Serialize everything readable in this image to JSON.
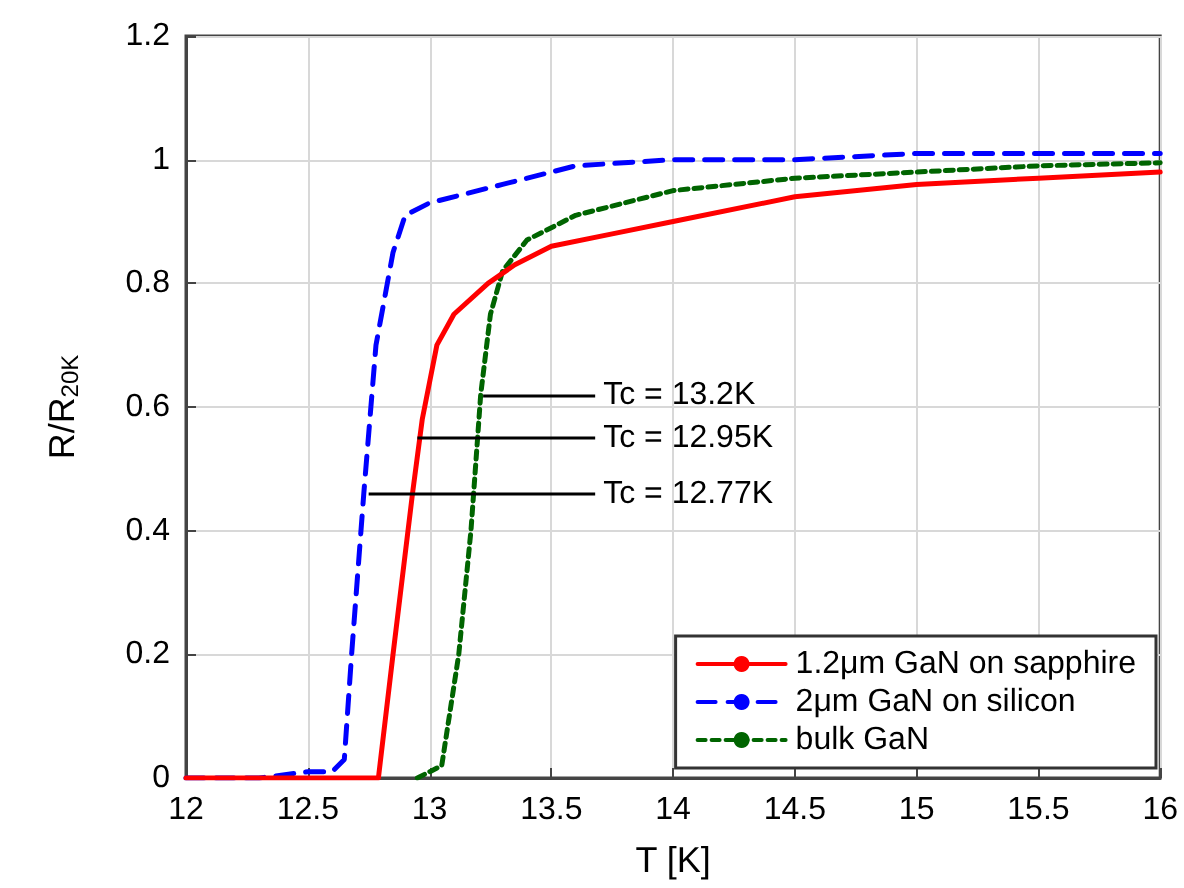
{
  "chart_data": {
    "type": "line",
    "xlabel": "T [K]",
    "ylabel": "R/R$_{20K}$",
    "xlim": [
      12,
      16
    ],
    "xticks": [
      12,
      12.5,
      13,
      13.5,
      14,
      14.5,
      15,
      15.5,
      16
    ],
    "ylim": [
      0,
      1.2
    ],
    "yticks": [
      0,
      0.2,
      0.4,
      0.6,
      0.8,
      1,
      1.2
    ],
    "grid": true,
    "legend": "bottom right",
    "marker": "none",
    "series": [
      {
        "name": "1.2μm GaN on sapphire",
        "color": "#ff0000",
        "line_style": "solid",
        "x": [
          12,
          12.79,
          12.85,
          12.93,
          12.97,
          13.03,
          13.1,
          13.24,
          13.35,
          13.5,
          13.75,
          14,
          14.5,
          15,
          15.5,
          16
        ],
        "values": [
          0,
          0,
          0.2,
          0.46,
          0.58,
          0.7,
          0.75,
          0.8,
          0.83,
          0.86,
          0.88,
          0.9,
          0.94,
          0.96,
          0.97,
          0.98
        ]
      },
      {
        "name": "2μm GaN on silicon",
        "color": "#0000ff",
        "line_style": "dashed",
        "x": [
          12,
          12.3,
          12.5,
          12.6,
          12.65,
          12.68,
          12.73,
          12.78,
          12.85,
          12.9,
          13,
          13.3,
          13.6,
          14,
          14.5,
          15,
          15.5,
          16
        ],
        "values": [
          0,
          0,
          0.01,
          0.01,
          0.03,
          0.2,
          0.46,
          0.7,
          0.85,
          0.91,
          0.93,
          0.96,
          0.99,
          1,
          1,
          1.01,
          1.01,
          1.01
        ]
      },
      {
        "name": "bulk GaN",
        "color": "#006400",
        "line_style": "dotted",
        "x": [
          12.95,
          13.05,
          13.12,
          13.17,
          13.21,
          13.25,
          13.3,
          13.4,
          13.6,
          14,
          14.5,
          15,
          15.5,
          16
        ],
        "values": [
          0,
          0.02,
          0.2,
          0.4,
          0.62,
          0.75,
          0.82,
          0.87,
          0.91,
          0.95,
          0.97,
          0.98,
          0.99,
          0.995
        ]
      }
    ],
    "annotations": [
      {
        "text": "Tc = 13.2K",
        "x": 13.22,
        "y": 0.62
      },
      {
        "text": "Tc = 12.95K",
        "x": 12.95,
        "y": 0.55
      },
      {
        "text": "Tc = 12.77K",
        "x": 12.75,
        "y": 0.46
      }
    ]
  }
}
